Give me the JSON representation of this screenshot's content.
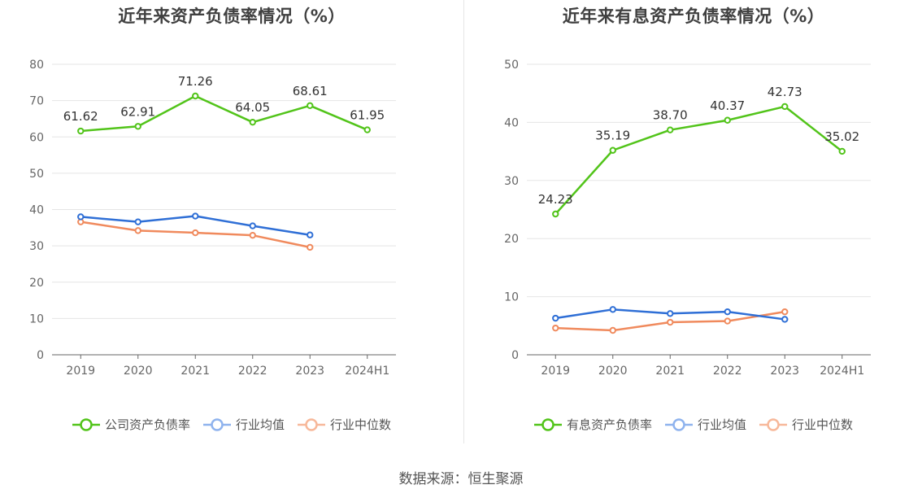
{
  "chart_data": [
    {
      "type": "line",
      "title": "近年来资产负债率情况（%）",
      "categories": [
        "2019",
        "2020",
        "2021",
        "2022",
        "2023",
        "2024H1"
      ],
      "ylim": [
        0,
        80
      ],
      "yticks": [
        0,
        10,
        20,
        30,
        40,
        50,
        60,
        70,
        80
      ],
      "grid": true,
      "legend_position": "bottom",
      "series": [
        {
          "name": "公司资产负债率",
          "color": "#52c41a",
          "values": [
            61.62,
            62.91,
            71.26,
            64.05,
            68.61,
            61.95
          ],
          "labels": [
            "61.62",
            "62.91",
            "71.26",
            "64.05",
            "68.61",
            "61.95"
          ]
        },
        {
          "name": "行业均值",
          "color": "#2f6fd6",
          "values": [
            38.0,
            36.6,
            38.2,
            35.5,
            33.0,
            null
          ]
        },
        {
          "name": "行业中位数",
          "color": "#f08a5d",
          "values": [
            36.6,
            34.2,
            33.6,
            32.9,
            29.6,
            null
          ]
        }
      ]
    },
    {
      "type": "line",
      "title": "近年来有息资产负债率情况（%）",
      "categories": [
        "2019",
        "2020",
        "2021",
        "2022",
        "2023",
        "2024H1"
      ],
      "ylim": [
        0,
        50
      ],
      "yticks": [
        0,
        10,
        20,
        30,
        40,
        50
      ],
      "grid": true,
      "legend_position": "bottom",
      "series": [
        {
          "name": "有息资产负债率",
          "color": "#52c41a",
          "values": [
            24.23,
            35.19,
            38.7,
            40.37,
            42.73,
            35.02
          ],
          "labels": [
            "24.23",
            "35.19",
            "38.70",
            "40.37",
            "42.73",
            "35.02"
          ]
        },
        {
          "name": "行业均值",
          "color": "#2f6fd6",
          "values": [
            6.3,
            7.8,
            7.1,
            7.4,
            6.1,
            null
          ]
        },
        {
          "name": "行业中位数",
          "color": "#f08a5d",
          "values": [
            4.6,
            4.2,
            5.6,
            5.8,
            7.4,
            null
          ]
        }
      ]
    }
  ],
  "legend_styles": {
    "primary": {
      "stroke": "#52c41a",
      "fill": "#ffffff"
    },
    "avg": {
      "stroke": "#8fb3ee",
      "fill": "#ffffff"
    },
    "median": {
      "stroke": "#f7b89a",
      "fill": "#ffffff"
    }
  },
  "source": "数据来源：恒生聚源"
}
